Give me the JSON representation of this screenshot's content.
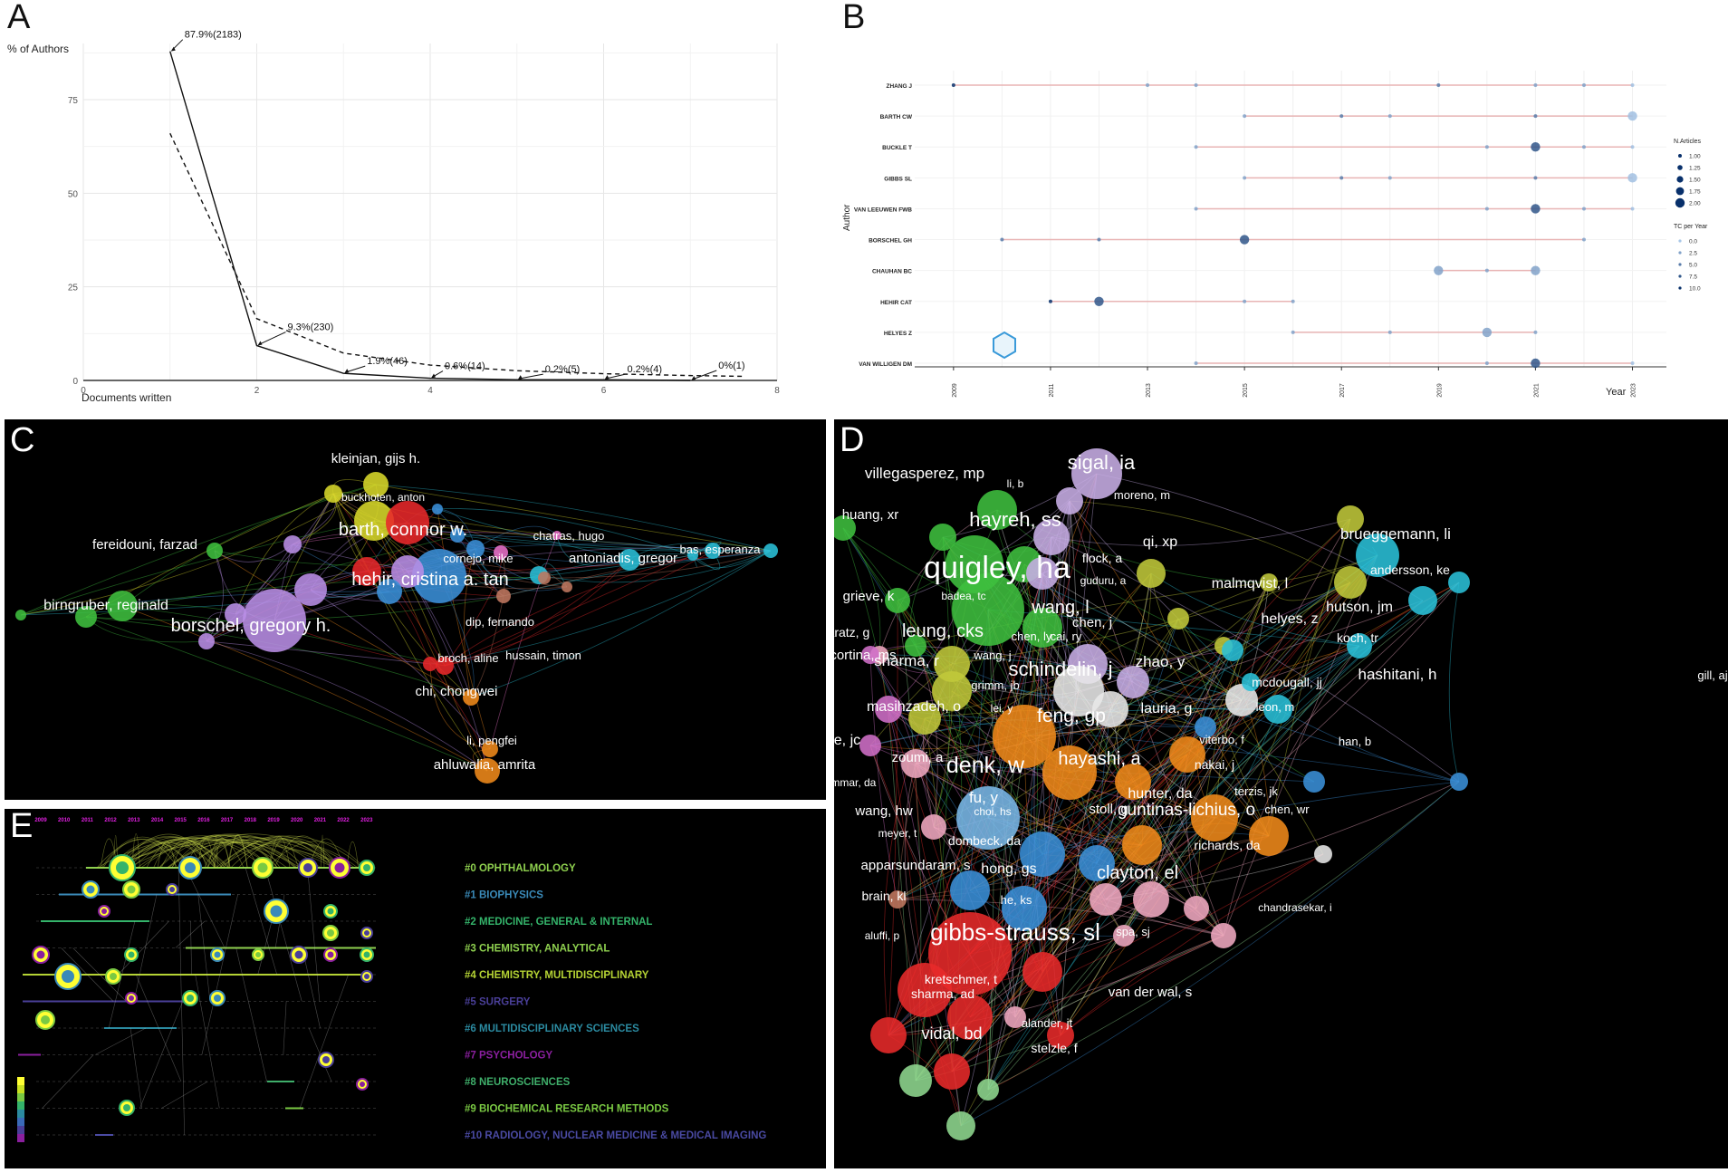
{
  "panels": {
    "a": "A",
    "b": "B",
    "c": "C",
    "d": "D",
    "e": "E"
  },
  "chart_data": [
    {
      "panel": "A",
      "type": "line",
      "ylabel": "% of Authors",
      "xlabel": "Documents written",
      "xlim": [
        0,
        8
      ],
      "ylim": [
        0,
        90
      ],
      "xticks": [
        "0",
        "2",
        "4",
        "6",
        "8"
      ],
      "yticks": [
        "0",
        "25",
        "50",
        "75"
      ],
      "series": [
        {
          "name": "observed",
          "style": "solid",
          "x": [
            1,
            2,
            3,
            4,
            5,
            6,
            7
          ],
          "y": [
            87.9,
            9.3,
            1.9,
            0.6,
            0.2,
            0.2,
            0
          ]
        },
        {
          "name": "Lotka expected",
          "style": "dashed",
          "x": [
            1,
            2,
            3,
            4,
            5,
            6,
            7,
            7.6
          ],
          "y": [
            66,
            16.5,
            7.3,
            4.1,
            2.6,
            1.8,
            1.3,
            1.1
          ]
        }
      ],
      "annotations": [
        {
          "x": 1,
          "y": 87.9,
          "text": "87.9%(2183)"
        },
        {
          "x": 2,
          "y": 9.3,
          "text": "9.3%(230)"
        },
        {
          "x": 3,
          "y": 1.9,
          "text": "1.9%(46)"
        },
        {
          "x": 4,
          "y": 0.6,
          "text": "0.6%(14)"
        },
        {
          "x": 5,
          "y": 0.2,
          "text": "0.2%(5)"
        },
        {
          "x": 6,
          "y": 0.2,
          "text": "0.2%(4)"
        },
        {
          "x": 7,
          "y": 0,
          "text": "0%(1)"
        }
      ]
    },
    {
      "panel": "B",
      "type": "scatter",
      "ylabel": "Author",
      "xlabel": "Year",
      "xlim": [
        2008.2,
        2023.7
      ],
      "xticks": [
        "2009",
        "2011",
        "2013",
        "2015",
        "2017",
        "2019",
        "2021",
        "2023"
      ],
      "authors": [
        {
          "name": "ZHANG J",
          "start": 2009,
          "end": 2023,
          "points": [
            {
              "year": 2009,
              "n": 1,
              "tc": 10.0
            },
            {
              "year": 2013,
              "n": 1,
              "tc": 2.5
            },
            {
              "year": 2014,
              "n": 1,
              "tc": 2.5
            },
            {
              "year": 2019,
              "n": 1,
              "tc": 5.0
            },
            {
              "year": 2021,
              "n": 1,
              "tc": 2.5
            },
            {
              "year": 2022,
              "n": 1,
              "tc": 2.5
            },
            {
              "year": 2023,
              "n": 1,
              "tc": 0.5
            }
          ]
        },
        {
          "name": "BARTH CW",
          "start": 2015,
          "end": 2023,
          "points": [
            {
              "year": 2015,
              "n": 1,
              "tc": 2.5
            },
            {
              "year": 2017,
              "n": 1,
              "tc": 5.0
            },
            {
              "year": 2018,
              "n": 1,
              "tc": 2.5
            },
            {
              "year": 2021,
              "n": 1,
              "tc": 5.0
            },
            {
              "year": 2023,
              "n": 2,
              "tc": 0.5
            }
          ]
        },
        {
          "name": "BUCKLE T",
          "start": 2014,
          "end": 2023,
          "points": [
            {
              "year": 2014,
              "n": 1,
              "tc": 2.5
            },
            {
              "year": 2020,
              "n": 1,
              "tc": 2.5
            },
            {
              "year": 2021,
              "n": 2,
              "tc": 7.5
            },
            {
              "year": 2022,
              "n": 1,
              "tc": 2.5
            },
            {
              "year": 2023,
              "n": 1,
              "tc": 0.5
            }
          ]
        },
        {
          "name": "GIBBS SL",
          "start": 2015,
          "end": 2023,
          "points": [
            {
              "year": 2015,
              "n": 1,
              "tc": 2.5
            },
            {
              "year": 2017,
              "n": 1,
              "tc": 5.0
            },
            {
              "year": 2018,
              "n": 1,
              "tc": 2.5
            },
            {
              "year": 2021,
              "n": 1,
              "tc": 5.0
            },
            {
              "year": 2023,
              "n": 2,
              "tc": 0.5
            }
          ]
        },
        {
          "name": "VAN LEEUWEN FWB",
          "start": 2014,
          "end": 2023,
          "points": [
            {
              "year": 2014,
              "n": 1,
              "tc": 2.5
            },
            {
              "year": 2020,
              "n": 1,
              "tc": 2.5
            },
            {
              "year": 2021,
              "n": 2,
              "tc": 7.5
            },
            {
              "year": 2022,
              "n": 1,
              "tc": 2.5
            },
            {
              "year": 2023,
              "n": 1,
              "tc": 0.5
            }
          ]
        },
        {
          "name": "BORSCHEL GH",
          "start": 2010,
          "end": 2022,
          "points": [
            {
              "year": 2010,
              "n": 1,
              "tc": 5.0
            },
            {
              "year": 2012,
              "n": 1,
              "tc": 5.0
            },
            {
              "year": 2015,
              "n": 2,
              "tc": 7.5
            },
            {
              "year": 2022,
              "n": 1,
              "tc": 2.5
            }
          ]
        },
        {
          "name": "CHAUHAN BC",
          "start": 2019,
          "end": 2021,
          "points": [
            {
              "year": 2019,
              "n": 2,
              "tc": 2.5
            },
            {
              "year": 2020,
              "n": 1,
              "tc": 2.5
            },
            {
              "year": 2021,
              "n": 2,
              "tc": 2.5
            }
          ]
        },
        {
          "name": "HEHIR CAT",
          "start": 2011,
          "end": 2016,
          "points": [
            {
              "year": 2011,
              "n": 1,
              "tc": 10.0
            },
            {
              "year": 2012,
              "n": 2,
              "tc": 7.5
            },
            {
              "year": 2015,
              "n": 1,
              "tc": 2.5
            },
            {
              "year": 2016,
              "n": 1,
              "tc": 2.5
            }
          ]
        },
        {
          "name": "HELYES Z",
          "start": 2016,
          "end": 2021,
          "points": [
            {
              "year": 2016,
              "n": 1,
              "tc": 2.5
            },
            {
              "year": 2018,
              "n": 1,
              "tc": 2.5
            },
            {
              "year": 2020,
              "n": 2,
              "tc": 2.5
            },
            {
              "year": 2021,
              "n": 1,
              "tc": 2.5
            }
          ]
        },
        {
          "name": "VAN WILLIGEN DM",
          "start": 2014,
          "end": 2023,
          "points": [
            {
              "year": 2014,
              "n": 1,
              "tc": 2.5
            },
            {
              "year": 2020,
              "n": 1,
              "tc": 2.5
            },
            {
              "year": 2021,
              "n": 2,
              "tc": 7.5
            },
            {
              "year": 2023,
              "n": 1,
              "tc": 0.5
            }
          ]
        }
      ],
      "legend_n": {
        "title": "N.Articles",
        "values": [
          "1.00",
          "1.25",
          "1.50",
          "1.75",
          "2.00"
        ]
      },
      "legend_tc": {
        "title": "TC per Year",
        "values": [
          "0.0",
          "2.5",
          "5.0",
          "7.5",
          "10.0"
        ]
      },
      "colors": {
        "segment": "#e8b4b4",
        "low": "#a9c8e8",
        "high": "#08306b"
      }
    },
    {
      "panel": "C",
      "type": "network",
      "node_labels": [
        "kleinjan, gijs h.",
        "buckhoten, anton",
        "barth, connor w.",
        "chatras, hugo",
        "fereidouni, farzad",
        "cornejo, mike",
        "antoniadis, gregor",
        "bas, esperanza",
        "hehir, cristina a. tan",
        "birngruber, reginald",
        "dip, fernando",
        "borschel, gregory h.",
        "hussain, timon",
        "broch, aline",
        "chi, chongwei",
        "li, pengfei",
        "ahluwalia, amrita"
      ]
    },
    {
      "panel": "D",
      "type": "network",
      "node_labels": [
        "sigal, ia",
        "villegasperez, mp",
        "li, b",
        "moreno, m",
        "huang, xr",
        "hayreh, ss",
        "brueggemann, li",
        "qi, xp",
        "quigley, ha",
        "flock, a",
        "andersson, ke",
        "guduru, a",
        "malmqvist, l",
        "grieve, k",
        "badea, tc",
        "wang, l",
        "hutson, jm",
        "haratz, g",
        "helyes, z",
        "chen, j",
        "leung, cks",
        "chen, ly",
        "cai, ry",
        "koch, tr",
        "cortina, ms",
        "sharma, r",
        "wang, j",
        "schindelin, j",
        "zhao, y",
        "hashitani, h",
        "gill, aj",
        "grimm, jb",
        "mcdougall, jj",
        "masihzadeh, o",
        "lei, y",
        "feng, gp",
        "lauria, g",
        "leon, m",
        "he, jc",
        "zoumi, a",
        "han, b",
        "viterbo, f",
        "denk, w",
        "hayashi, a",
        "nakai, j",
        "ammar, da",
        "terzis, jk",
        "hunter, da",
        "wang, hw",
        "choi, hs",
        "fu, y",
        "stoll, g",
        "guntinas-lichius, o",
        "chen, wr",
        "meyer, t",
        "dombeck, da",
        "richards, da",
        "apparsundaram, s",
        "hong, gs",
        "clayton, el",
        "brain, kl",
        "he, ks",
        "chandrasekar, i",
        "aluffi, p",
        "gibbs-strauss, sl",
        "spa, sj",
        "kretschmer, t",
        "van der wal, s",
        "sharma, ad",
        "alander, jt",
        "vidal, bd",
        "stelzle, f"
      ]
    },
    {
      "panel": "E",
      "type": "timeline",
      "years": [
        "2009",
        "2010",
        "2011",
        "2012",
        "2013",
        "2014",
        "2015",
        "2016",
        "2017",
        "2018",
        "2019",
        "2020",
        "2021",
        "2022",
        "2023"
      ],
      "clusters": [
        {
          "label": "#0 OPHTHALMOLOGY",
          "color": "#8fd14f"
        },
        {
          "label": "#1 BIOPHYSICS",
          "color": "#3a8ab8"
        },
        {
          "label": "#2 MEDICINE, GENERAL & INTERNAL",
          "color": "#34b36a"
        },
        {
          "label": "#3 CHEMISTRY, ANALYTICAL",
          "color": "#8fd14f"
        },
        {
          "label": "#4 CHEMISTRY, MULTIDISCIPLINARY",
          "color": "#b5d334"
        },
        {
          "label": "#5 SURGERY",
          "color": "#4a3f99"
        },
        {
          "label": "#6 MULTIDISCIPLINARY SCIENCES",
          "color": "#2b8aa0"
        },
        {
          "label": "#7 PSYCHOLOGY",
          "color": "#8a1f9e"
        },
        {
          "label": "#8 NEUROSCIENCES",
          "color": "#3fae6a"
        },
        {
          "label": "#9 BIOCHEMICAL RESEARCH METHODS",
          "color": "#7ac943"
        },
        {
          "label": "#10 RADIOLOGY, NUCLEAR MEDICINE & MEDICAL IMAGING",
          "color": "#4a4aa3"
        }
      ]
    }
  ]
}
